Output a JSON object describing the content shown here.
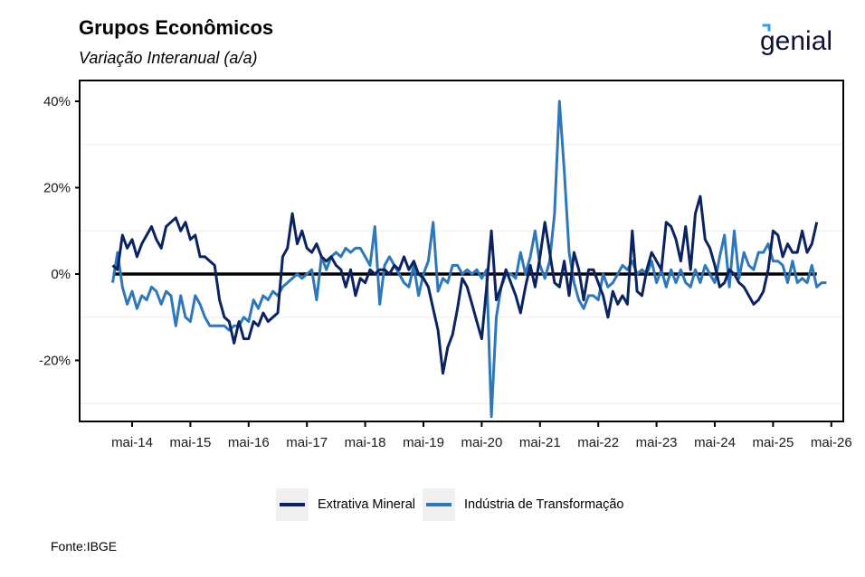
{
  "header": {
    "title": "Grupos Econômicos",
    "subtitle": "Variação Interanual (a/a)",
    "logo_text": "genial"
  },
  "footer": {
    "source": "Fonte:IBGE"
  },
  "colors": {
    "extrativa": "#0b2361",
    "transformacao": "#2e77bb",
    "zero_line": "#000000",
    "logo_text": "#0f1135",
    "logo_accent": "#2a9df4"
  },
  "chart_data": {
    "type": "line",
    "title": "Grupos Econômicos",
    "subtitle": "Variação Interanual (a/a)",
    "xlabel": "",
    "ylabel": "",
    "ylim": [
      -0.345,
      0.42
    ],
    "y_ticks": [
      -0.2,
      0,
      0.2,
      0.4
    ],
    "y_tick_labels": [
      "-20%",
      "0%",
      "20%",
      "40%"
    ],
    "y_minor_grid": [
      -0.3,
      -0.1,
      0.1,
      0.3
    ],
    "x_start": "2014-01",
    "x_tick_labels": [
      "mai-14",
      "mai-15",
      "mai-16",
      "mai-17",
      "mai-18",
      "mai-19",
      "mai-20",
      "mai-21",
      "mai-22",
      "mai-23",
      "mai-24",
      "mai-25",
      "mai-26"
    ],
    "x_tick_months": [
      "2014-05",
      "2015-05",
      "2016-05",
      "2017-05",
      "2018-05",
      "2019-05",
      "2020-05",
      "2021-05",
      "2022-05",
      "2023-05",
      "2024-05",
      "2025-05",
      "2026-05"
    ],
    "grid": "horizontal-minor-only",
    "reference_line": 0,
    "legend_position": "bottom",
    "series": [
      {
        "name": "Extrativa Mineral",
        "values": [
          0.02,
          0.01,
          0.09,
          0.06,
          0.08,
          0.04,
          0.07,
          0.09,
          0.11,
          0.08,
          0.06,
          0.11,
          0.12,
          0.13,
          0.1,
          0.12,
          0.08,
          0.09,
          0.04,
          0.04,
          0.03,
          0.02,
          -0.06,
          -0.1,
          -0.11,
          -0.16,
          -0.11,
          -0.15,
          -0.15,
          -0.11,
          -0.12,
          -0.09,
          -0.11,
          -0.1,
          -0.09,
          0.04,
          0.06,
          0.14,
          0.07,
          0.1,
          0.06,
          0.05,
          0.07,
          0.04,
          0.03,
          0.04,
          0.02,
          0.01,
          -0.03,
          0.01,
          -0.05,
          -0.01,
          -0.02,
          0.01,
          0.0,
          0.01,
          0.01,
          0.0,
          0.02,
          0.01,
          0.04,
          0.01,
          0.03,
          0.0,
          -0.01,
          -0.03,
          -0.08,
          -0.13,
          -0.23,
          -0.17,
          -0.14,
          -0.08,
          -0.01,
          -0.03,
          -0.07,
          -0.11,
          -0.15,
          -0.03,
          0.1,
          -0.06,
          -0.03,
          0.01,
          -0.02,
          -0.05,
          -0.09,
          -0.03,
          0.02,
          -0.03,
          0.04,
          0.12,
          0.05,
          -0.02,
          -0.03,
          0.03,
          -0.05,
          0.05,
          0.01,
          -0.06,
          0.01,
          0.01,
          -0.02,
          -0.05,
          -0.1,
          -0.04,
          -0.07,
          -0.05,
          -0.07,
          0.1,
          -0.04,
          -0.05,
          0.01,
          0.05,
          0.03,
          0.01,
          0.12,
          0.11,
          0.08,
          0.03,
          0.11,
          0.01,
          0.14,
          0.18,
          0.08,
          0.06,
          0.02,
          -0.03,
          -0.02,
          0.01,
          0.0,
          -0.02,
          -0.03,
          -0.05,
          -0.07,
          -0.06,
          -0.04,
          0.01,
          0.1,
          0.09,
          0.04,
          0.07,
          0.05,
          0.05,
          0.1,
          0.05,
          0.07,
          0.12
        ]
      },
      {
        "name": "Indústria de Transformação",
        "values": [
          -0.02,
          0.05,
          -0.03,
          -0.07,
          -0.04,
          -0.08,
          -0.05,
          -0.06,
          -0.03,
          -0.04,
          -0.07,
          -0.04,
          -0.05,
          -0.12,
          -0.05,
          -0.1,
          -0.11,
          -0.05,
          -0.07,
          -0.1,
          -0.12,
          -0.12,
          -0.12,
          -0.12,
          -0.13,
          -0.12,
          -0.12,
          -0.1,
          -0.11,
          -0.06,
          -0.08,
          -0.05,
          -0.06,
          -0.04,
          -0.05,
          -0.03,
          -0.02,
          -0.01,
          0.0,
          -0.01,
          0.0,
          0.01,
          -0.06,
          0.04,
          0.01,
          0.04,
          0.05,
          0.04,
          0.06,
          0.05,
          0.06,
          0.06,
          0.04,
          0.02,
          0.11,
          -0.07,
          0.02,
          0.04,
          0.02,
          0.0,
          -0.02,
          -0.03,
          0.02,
          -0.05,
          0.0,
          0.03,
          0.12,
          -0.04,
          -0.01,
          -0.02,
          0.02,
          0.02,
          0.0,
          0.01,
          0.0,
          0.01,
          -0.01,
          0.01,
          -0.33,
          -0.1,
          -0.03,
          0.0,
          0.0,
          -0.01,
          0.05,
          0.0,
          0.04,
          0.1,
          0.02,
          -0.01,
          0.03,
          0.14,
          0.4,
          0.24,
          0.05,
          -0.02,
          -0.06,
          -0.08,
          -0.05,
          -0.05,
          -0.06,
          0.0,
          -0.03,
          -0.02,
          0.0,
          0.02,
          0.01,
          0.03,
          0.0,
          0.01,
          0.0,
          0.03,
          -0.02,
          0.01,
          -0.03,
          0.01,
          -0.02,
          0.01,
          -0.02,
          -0.03,
          0.01,
          -0.02,
          0.02,
          0.0,
          -0.02,
          0.04,
          0.09,
          -0.03,
          0.1,
          -0.01,
          0.05,
          0.02,
          0.01,
          0.05,
          0.05,
          0.07,
          0.03,
          0.03,
          0.02,
          -0.02,
          0.03,
          -0.02,
          -0.01,
          -0.02,
          0.02,
          -0.03,
          -0.02,
          -0.02
        ]
      }
    ]
  },
  "legend": {
    "items": [
      {
        "label": "Extrativa Mineral"
      },
      {
        "label": "Indústria de Transformação"
      }
    ]
  }
}
